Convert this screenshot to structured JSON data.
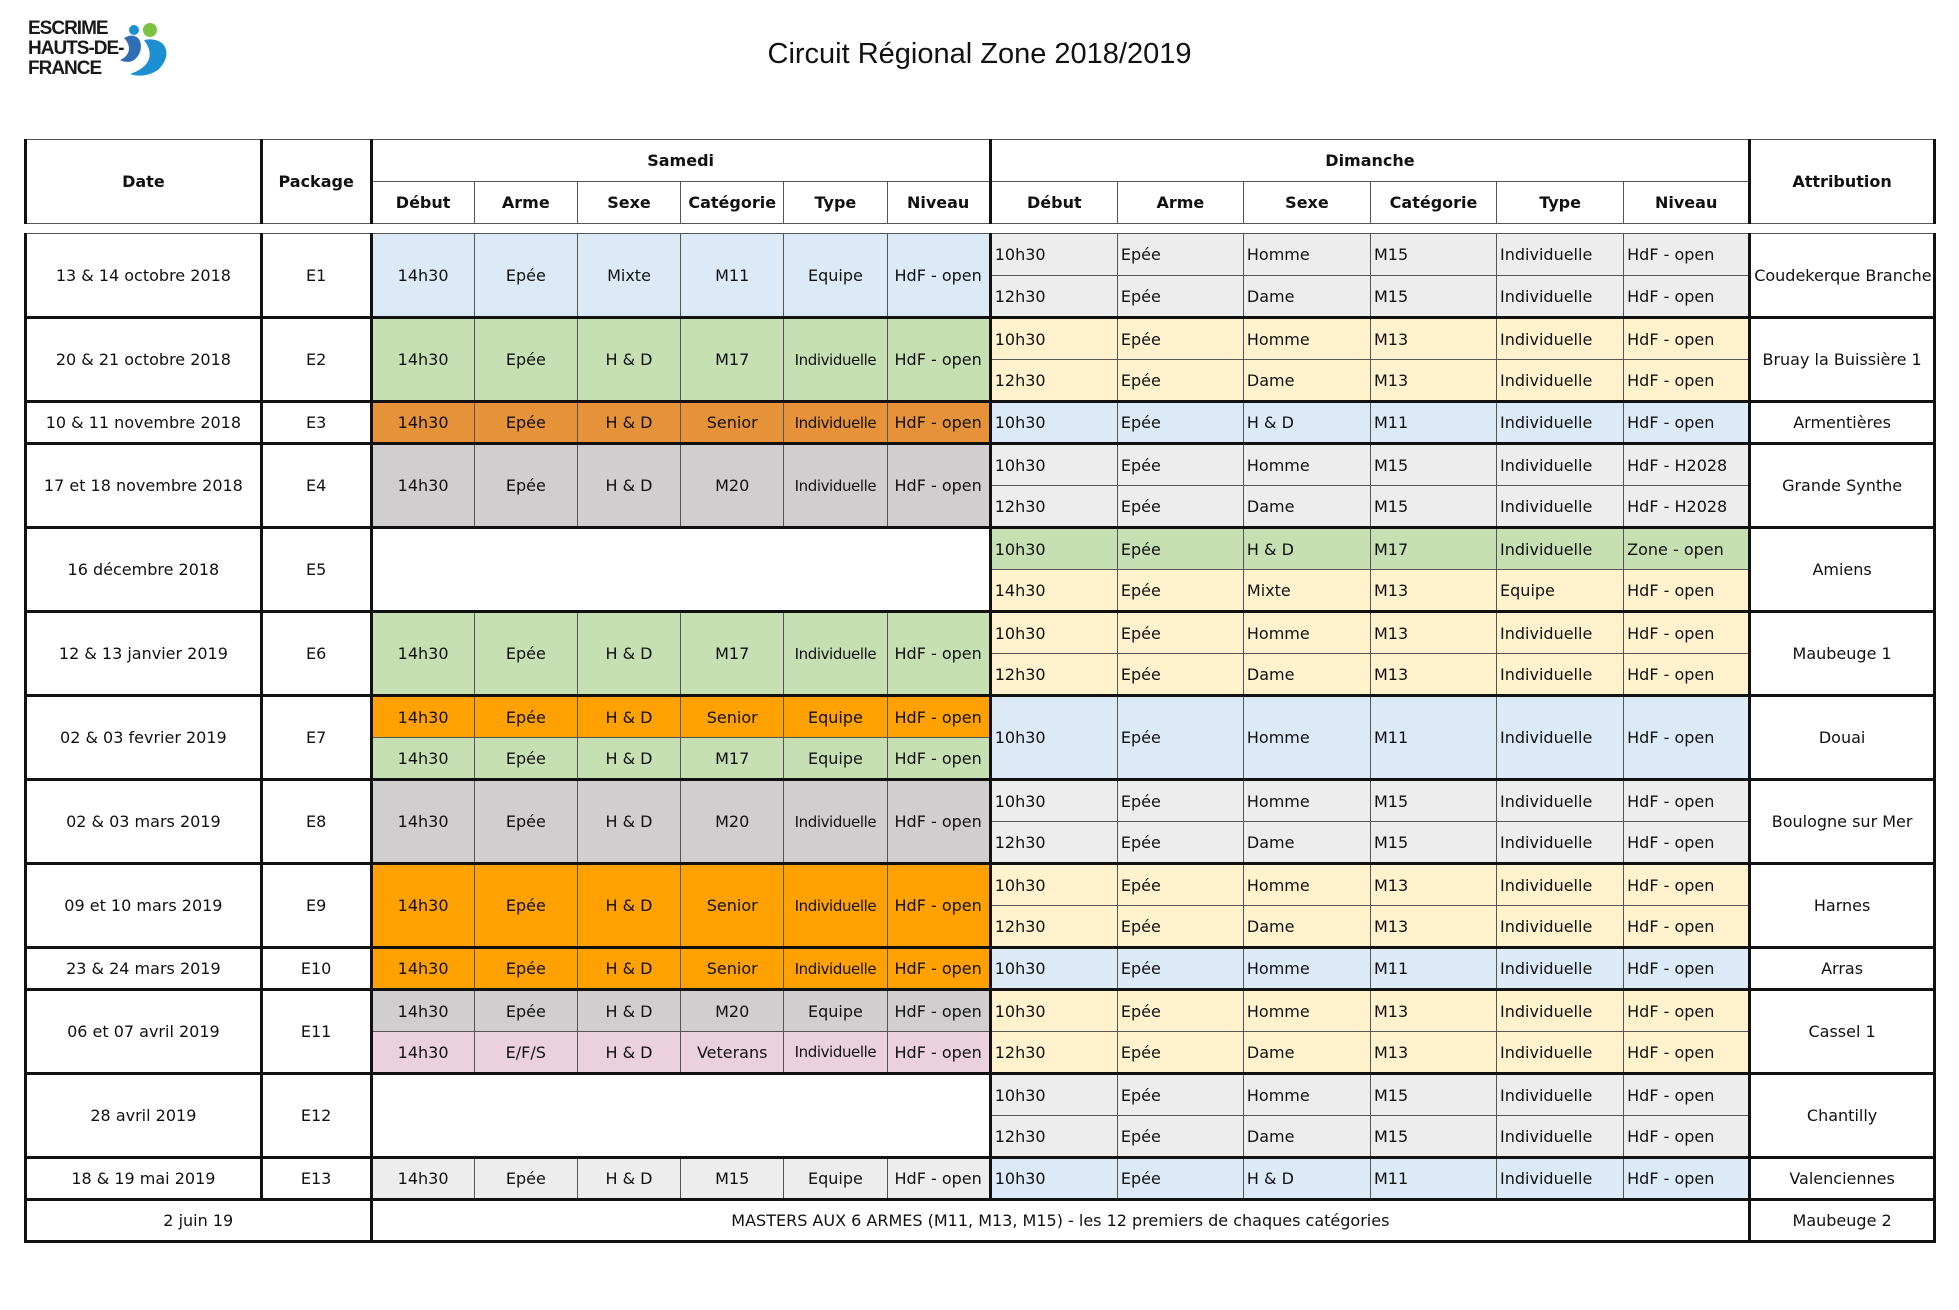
{
  "logo": {
    "line1": "ESCRIME",
    "line2": "HAUTS-DE-",
    "line3": "FRANCE"
  },
  "title": "Circuit Régional Zone 2018/2019",
  "headers": {
    "date": "Date",
    "package": "Package",
    "samedi": "Samedi",
    "dimanche": "Dimanche",
    "attribution": "Attribution",
    "cols": [
      "Début",
      "Arme",
      "Sexe",
      "Catégorie",
      "Type",
      "Niveau"
    ]
  },
  "colors": {
    "blue": "#dce9f6",
    "green": "#c6e0b4",
    "orange": "#ffa100",
    "dark_orange": "#e69238",
    "gray": "#d0cece",
    "light_gray": "#ededed",
    "yellow": "#fff2cc",
    "pink": "#ead1dc"
  },
  "events": [
    {
      "date": "13 & 14 octobre 2018",
      "package": "E1",
      "attribution": "Coudekerque Branche",
      "samedi": [
        {
          "debut": "14h30",
          "arme": "Epée",
          "sexe": "Mixte",
          "categorie": "M11",
          "type": "Equipe",
          "niveau": "HdF - open",
          "color": "bl"
        }
      ],
      "dimanche": [
        {
          "debut": "10h30",
          "arme": "Epée",
          "sexe": "Homme",
          "categorie": "M15",
          "type": "Individuelle",
          "niveau": "HdF - open",
          "color": "lg"
        },
        {
          "debut": "12h30",
          "arme": "Epée",
          "sexe": "Dame",
          "categorie": "M15",
          "type": "Individuelle",
          "niveau": "HdF - open",
          "color": "lg"
        }
      ]
    },
    {
      "date": "20 & 21 octobre 2018",
      "package": "E2",
      "attribution": "Bruay la Buissière 1",
      "samedi": [
        {
          "debut": "14h30",
          "arme": "Epée",
          "sexe": "H & D",
          "categorie": "M17",
          "type": "Individuelle",
          "niveau": "HdF - open",
          "color": "gr"
        }
      ],
      "dimanche": [
        {
          "debut": "10h30",
          "arme": "Epée",
          "sexe": "Homme",
          "categorie": "M13",
          "type": "Individuelle",
          "niveau": "HdF - open",
          "color": "ye"
        },
        {
          "debut": "12h30",
          "arme": "Epée",
          "sexe": "Dame",
          "categorie": "M13",
          "type": "Individuelle",
          "niveau": "HdF - open",
          "color": "ye"
        }
      ]
    },
    {
      "date": "10 & 11 novembre 2018",
      "package": "E3",
      "attribution": "Armentières",
      "samedi": [
        {
          "debut": "14h30",
          "arme": "Epée",
          "sexe": "H & D",
          "categorie": "Senior",
          "type": "Individuelle",
          "niveau": "HdF - open",
          "color": "ob"
        }
      ],
      "dimanche": [
        {
          "debut": "10h30",
          "arme": "Epée",
          "sexe": "H & D",
          "categorie": "M11",
          "type": "Individuelle",
          "niveau": "HdF - open",
          "color": "bl"
        }
      ]
    },
    {
      "date": "17 et 18 novembre 2018",
      "package": "E4",
      "attribution": "Grande Synthe",
      "samedi": [
        {
          "debut": "14h30",
          "arme": "Epée",
          "sexe": "H & D",
          "categorie": "M20",
          "type": "Individuelle",
          "niveau": "HdF - open",
          "color": "gy"
        }
      ],
      "dimanche": [
        {
          "debut": "10h30",
          "arme": "Epée",
          "sexe": "Homme",
          "categorie": "M15",
          "type": "Individuelle",
          "niveau": "HdF - H2028",
          "color": "lg"
        },
        {
          "debut": "12h30",
          "arme": "Epée",
          "sexe": "Dame",
          "categorie": "M15",
          "type": "Individuelle",
          "niveau": "HdF - H2028",
          "color": "lg"
        }
      ]
    },
    {
      "date": "16 décembre 2018",
      "package": "E5",
      "attribution": "Amiens",
      "samedi": [],
      "dimanche": [
        {
          "debut": "10h30",
          "arme": "Epée",
          "sexe": "H & D",
          "categorie": "M17",
          "type": "Individuelle",
          "niveau": "Zone - open",
          "color": "gr"
        },
        {
          "debut": "14h30",
          "arme": "Epée",
          "sexe": "Mixte",
          "categorie": "M13",
          "type": "Equipe",
          "niveau": "HdF - open",
          "color": "ye"
        }
      ]
    },
    {
      "date": "12 & 13 janvier 2019",
      "package": "E6",
      "attribution": "Maubeuge 1",
      "samedi": [
        {
          "debut": "14h30",
          "arme": "Epée",
          "sexe": "H & D",
          "categorie": "M17",
          "type": "Individuelle",
          "niveau": "HdF - open",
          "color": "gr"
        }
      ],
      "dimanche": [
        {
          "debut": "10h30",
          "arme": "Epée",
          "sexe": "Homme",
          "categorie": "M13",
          "type": "Individuelle",
          "niveau": "HdF - open",
          "color": "ye"
        },
        {
          "debut": "12h30",
          "arme": "Epée",
          "sexe": "Dame",
          "categorie": "M13",
          "type": "Individuelle",
          "niveau": "HdF - open",
          "color": "ye"
        }
      ]
    },
    {
      "date": "02 & 03 fevrier 2019",
      "package": "E7",
      "attribution": "Douai",
      "samedi": [
        {
          "debut": "14h30",
          "arme": "Epée",
          "sexe": "H & D",
          "categorie": "Senior",
          "type": "Equipe",
          "niveau": "HdF - open",
          "color": "or"
        },
        {
          "debut": "14h30",
          "arme": "Epée",
          "sexe": "H & D",
          "categorie": "M17",
          "type": "Equipe",
          "niveau": "HdF - open",
          "color": "gr"
        }
      ],
      "dimanche": [
        {
          "debut": "10h30",
          "arme": "Epée",
          "sexe": "Homme",
          "categorie": "M11",
          "type": "Individuelle",
          "niveau": "HdF - open",
          "color": "bl"
        }
      ]
    },
    {
      "date": "02 & 03 mars 2019",
      "package": "E8",
      "attribution": "Boulogne sur Mer",
      "samedi": [
        {
          "debut": "14h30",
          "arme": "Epée",
          "sexe": "H & D",
          "categorie": "M20",
          "type": "Individuelle",
          "niveau": "HdF - open",
          "color": "gy"
        }
      ],
      "dimanche": [
        {
          "debut": "10h30",
          "arme": "Epée",
          "sexe": "Homme",
          "categorie": "M15",
          "type": "Individuelle",
          "niveau": "HdF - open",
          "color": "lg"
        },
        {
          "debut": "12h30",
          "arme": "Epée",
          "sexe": "Dame",
          "categorie": "M15",
          "type": "Individuelle",
          "niveau": "HdF - open",
          "color": "lg"
        }
      ]
    },
    {
      "date": "09 et 10 mars 2019",
      "package": "E9",
      "attribution": "Harnes",
      "samedi": [
        {
          "debut": "14h30",
          "arme": "Epée",
          "sexe": "H & D",
          "categorie": "Senior",
          "type": "Individuelle",
          "niveau": "HdF - open",
          "color": "or"
        }
      ],
      "dimanche": [
        {
          "debut": "10h30",
          "arme": "Epée",
          "sexe": "Homme",
          "categorie": "M13",
          "type": "Individuelle",
          "niveau": "HdF - open",
          "color": "ye"
        },
        {
          "debut": "12h30",
          "arme": "Epée",
          "sexe": "Dame",
          "categorie": "M13",
          "type": "Individuelle",
          "niveau": "HdF - open",
          "color": "ye"
        }
      ]
    },
    {
      "date": "23 & 24 mars 2019",
      "package": "E10",
      "attribution": "Arras",
      "samedi": [
        {
          "debut": "14h30",
          "arme": "Epée",
          "sexe": "H & D",
          "categorie": "Senior",
          "type": "Individuelle",
          "niveau": "HdF - open",
          "color": "or"
        }
      ],
      "dimanche": [
        {
          "debut": "10h30",
          "arme": "Epée",
          "sexe": "Homme",
          "categorie": "M11",
          "type": "Individuelle",
          "niveau": "HdF - open",
          "color": "bl"
        }
      ]
    },
    {
      "date": "06 et 07 avril 2019",
      "package": "E11",
      "attribution": "Cassel 1",
      "samedi": [
        {
          "debut": "14h30",
          "arme": "Epée",
          "sexe": "H & D",
          "categorie": "M20",
          "type": "Equipe",
          "niveau": "HdF - open",
          "color": "gy"
        },
        {
          "debut": "14h30",
          "arme": "E/F/S",
          "sexe": "H & D",
          "categorie": "Veterans",
          "type": "Individuelle",
          "niveau": "HdF - open",
          "color": "pk"
        }
      ],
      "dimanche": [
        {
          "debut": "10h30",
          "arme": "Epée",
          "sexe": "Homme",
          "categorie": "M13",
          "type": "Individuelle",
          "niveau": "HdF - open",
          "color": "ye"
        },
        {
          "debut": "12h30",
          "arme": "Epée",
          "sexe": "Dame",
          "categorie": "M13",
          "type": "Individuelle",
          "niveau": "HdF - open",
          "color": "ye"
        }
      ]
    },
    {
      "date": "28 avril 2019",
      "package": "E12",
      "attribution": "Chantilly",
      "samedi": [],
      "dimanche": [
        {
          "debut": "10h30",
          "arme": "Epée",
          "sexe": "Homme",
          "categorie": "M15",
          "type": "Individuelle",
          "niveau": "HdF - open",
          "color": "lg"
        },
        {
          "debut": "12h30",
          "arme": "Epée",
          "sexe": "Dame",
          "categorie": "M15",
          "type": "Individuelle",
          "niveau": "HdF - open",
          "color": "lg"
        }
      ]
    },
    {
      "date": "18 & 19 mai 2019",
      "package": "E13",
      "attribution": "Valenciennes",
      "samedi": [
        {
          "debut": "14h30",
          "arme": "Epée",
          "sexe": "H & D",
          "categorie": "M15",
          "type": "Equipe",
          "niveau": "HdF - open",
          "color": "lg"
        }
      ],
      "dimanche": [
        {
          "debut": "10h30",
          "arme": "Epée",
          "sexe": "H & D",
          "categorie": "M11",
          "type": "Individuelle",
          "niveau": "HdF - open",
          "color": "bl"
        }
      ]
    }
  ],
  "masters": {
    "date": "2 juin 19",
    "text": "MASTERS AUX 6 ARMES  (M11, M13, M15) - les 12 premiers de chaques catégories",
    "attribution": "Maubeuge 2"
  }
}
